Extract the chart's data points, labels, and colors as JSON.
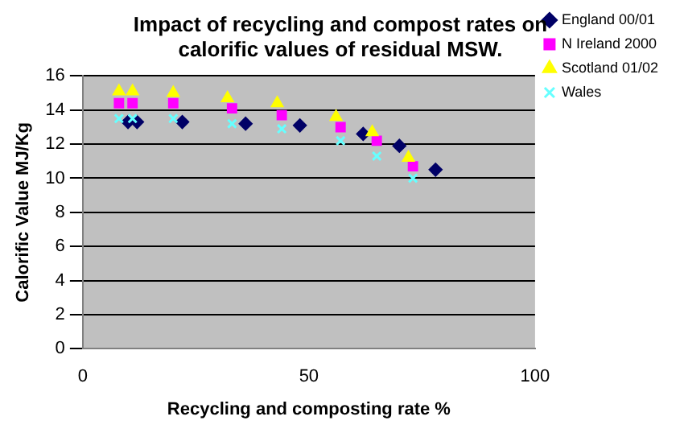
{
  "chart_data": {
    "type": "scatter",
    "title": "Impact of recycling and compost rates on calorific values of residual MSW.",
    "xlabel": "Recycling and composting rate %",
    "ylabel": "Calorific Value MJ/Kg",
    "xlim": [
      0,
      100
    ],
    "xticks": [
      0,
      50,
      100
    ],
    "ylim": [
      0,
      16
    ],
    "yticks": [
      0,
      2,
      4,
      6,
      8,
      10,
      12,
      14,
      16
    ],
    "grid": "y",
    "legend": "right",
    "series": [
      {
        "name": "England 00/01",
        "color": "#000066",
        "marker": "diamond",
        "x": [
          10,
          12,
          22,
          36,
          48,
          62,
          70,
          78
        ],
        "values": [
          13.3,
          13.3,
          13.3,
          13.2,
          13.1,
          12.6,
          11.9,
          10.5
        ]
      },
      {
        "name": "N Ireland 2000",
        "color": "#ff00ff",
        "marker": "square",
        "x": [
          8,
          11,
          20,
          33,
          44,
          57,
          65,
          73
        ],
        "values": [
          14.4,
          14.4,
          14.4,
          14.1,
          13.7,
          13.0,
          12.2,
          10.7
        ]
      },
      {
        "name": "Scotland 01/02",
        "color": "#ffff00",
        "marker": "triangle",
        "x": [
          8,
          11,
          20,
          32,
          43,
          56,
          64,
          72
        ],
        "values": [
          15.1,
          15.1,
          15.0,
          14.7,
          14.4,
          13.6,
          12.7,
          11.2
        ]
      },
      {
        "name": "Wales",
        "color": "#66ffff",
        "marker": "cross",
        "x": [
          8,
          11,
          20,
          33,
          44,
          57,
          65,
          73
        ],
        "values": [
          13.5,
          13.5,
          13.5,
          13.2,
          12.9,
          12.2,
          11.3,
          10.0
        ]
      }
    ]
  }
}
